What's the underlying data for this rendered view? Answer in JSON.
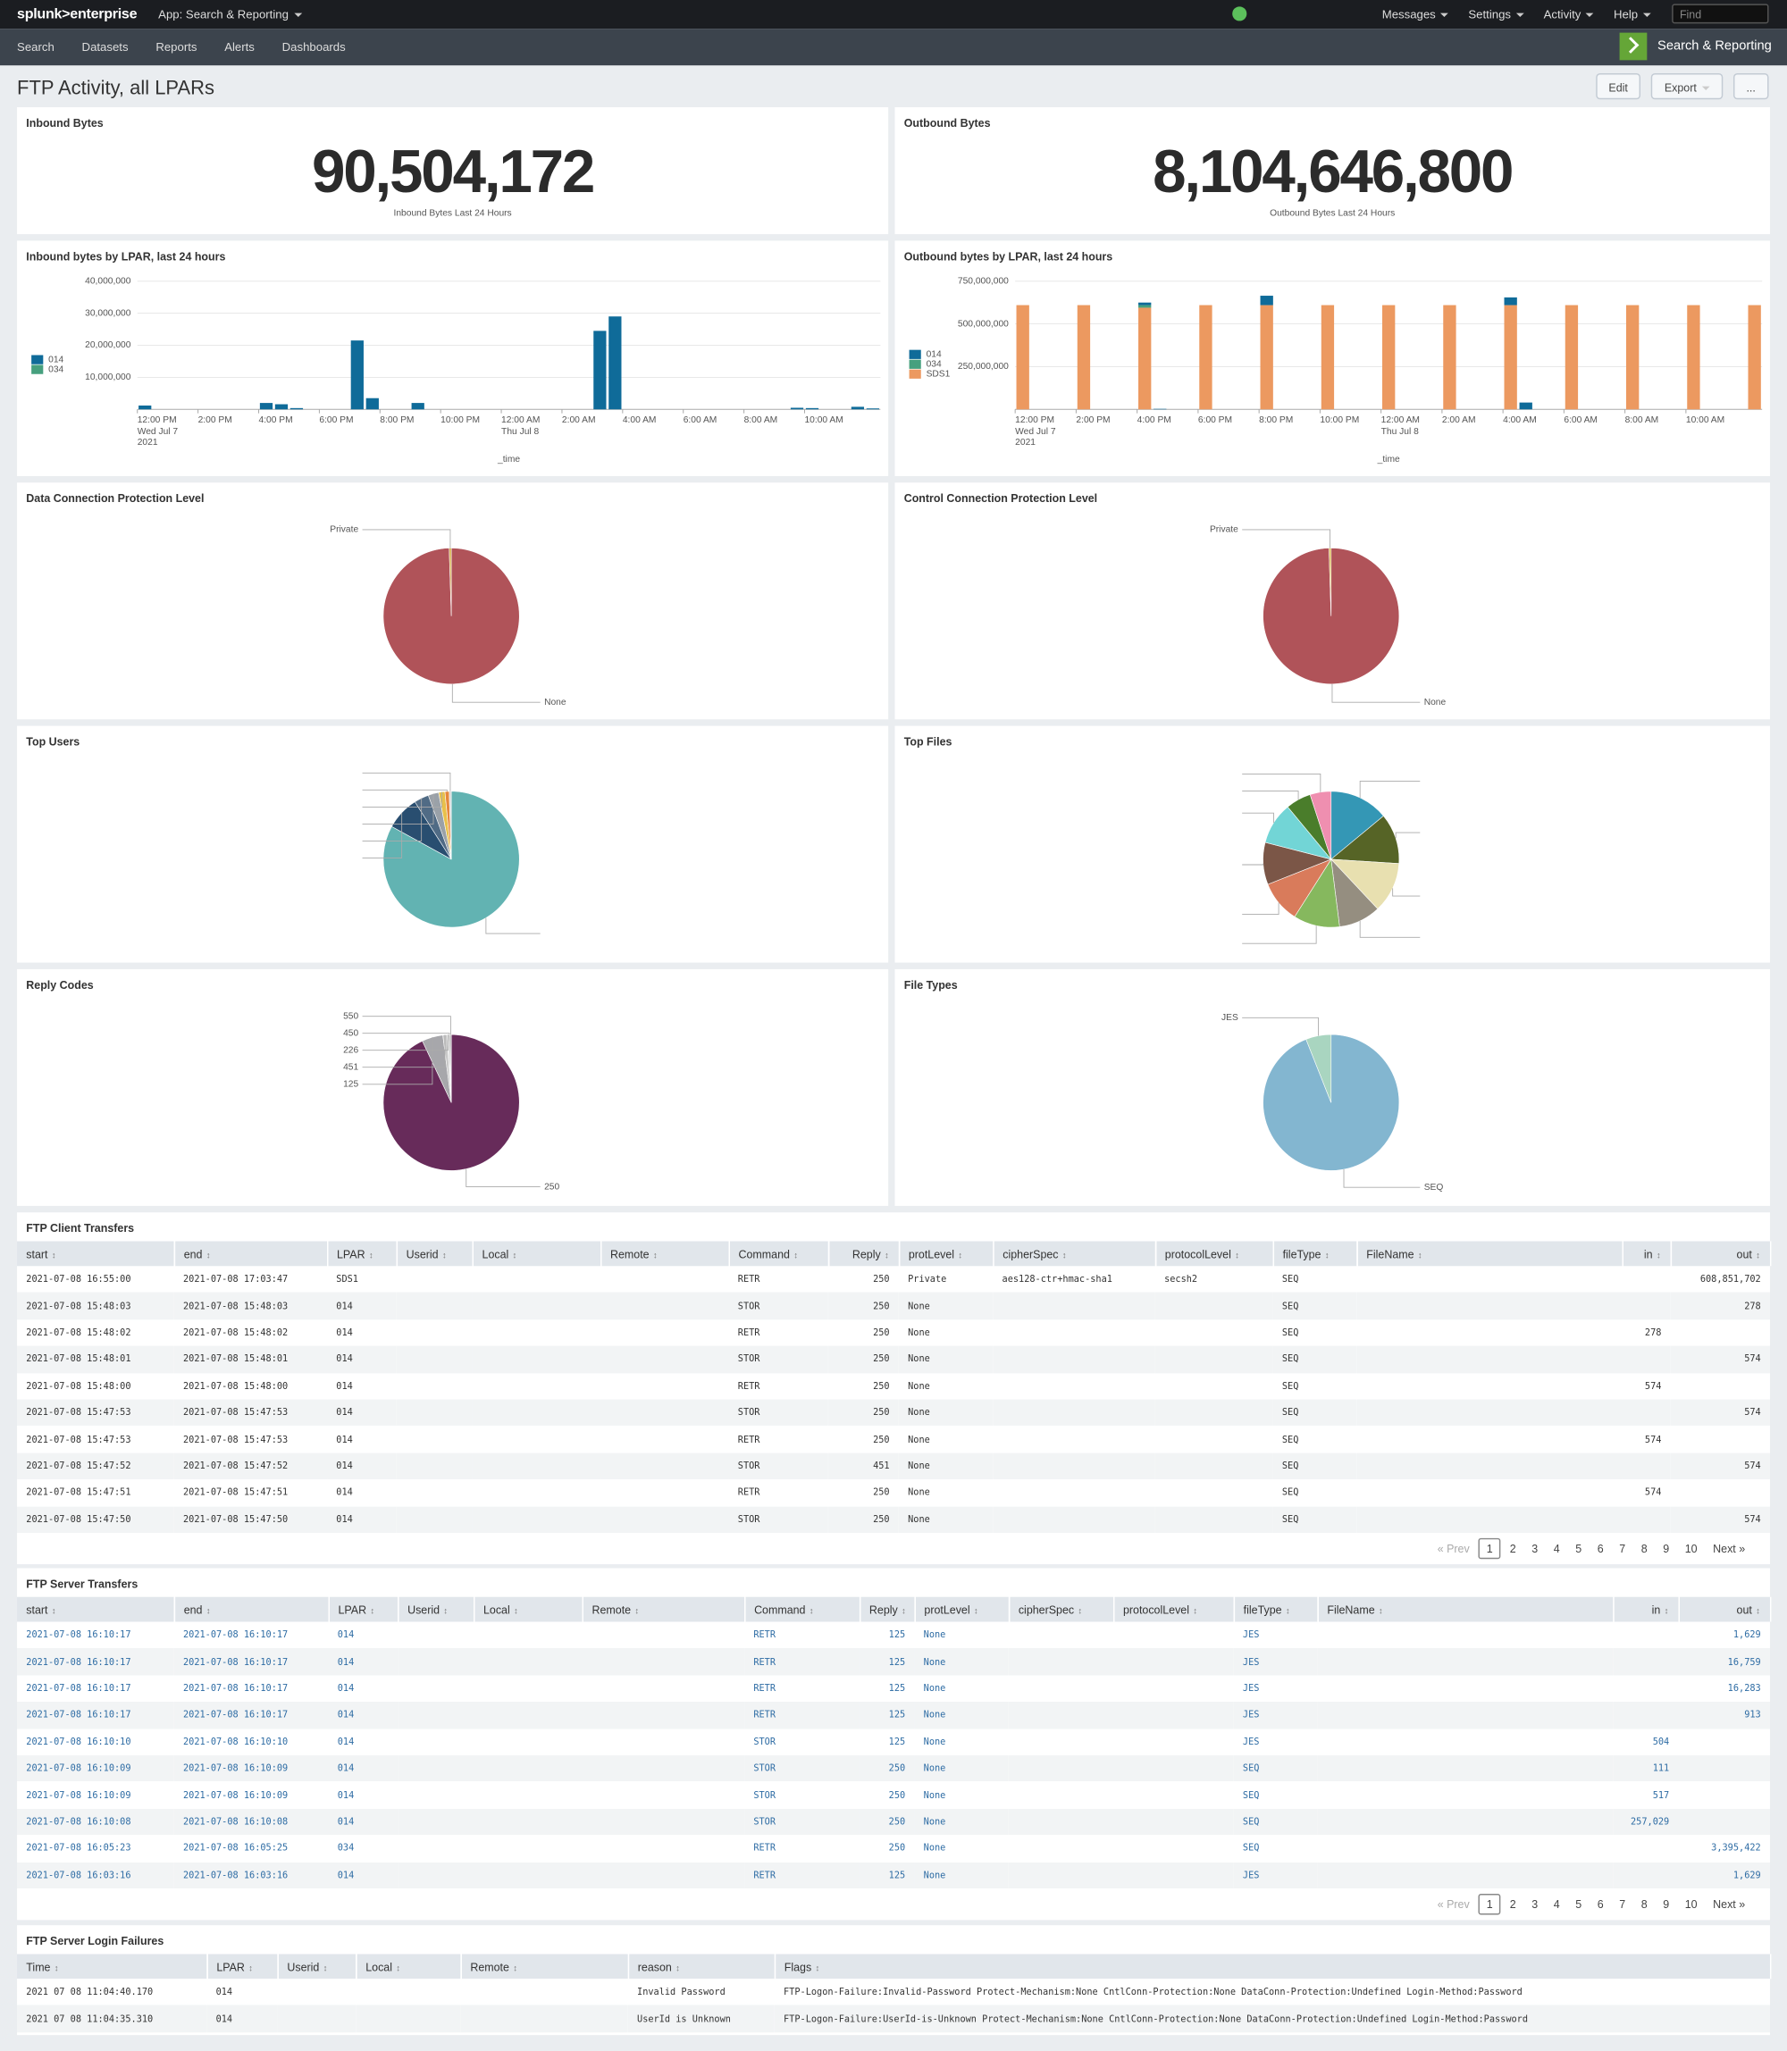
{
  "nav": {
    "brand": "splunk>enterprise",
    "app": "App: Search & Reporting",
    "menus": [
      "Messages",
      "Settings",
      "Activity",
      "Help"
    ],
    "find": "Find"
  },
  "subnav": {
    "items": [
      "Search",
      "Datasets",
      "Reports",
      "Alerts",
      "Dashboards"
    ],
    "app_title": "Search & Reporting"
  },
  "dashboard": {
    "title": "FTP Activity, all LPARs",
    "buttons": [
      "Edit",
      "Export",
      "..."
    ]
  },
  "singles": [
    {
      "title": "Inbound Bytes",
      "value": "90,504,172",
      "caption": "Inbound Bytes Last 24 Hours"
    },
    {
      "title": "Outbound Bytes",
      "value": "8,104,646,800",
      "caption": "Outbound Bytes Last 24 Hours"
    }
  ],
  "chart_data": [
    {
      "type": "bar",
      "stacked": true,
      "title": "Inbound bytes by LPAR, last 24 hours",
      "x_label": "_time",
      "categories": [
        "12:00 PM\nWed Jul 7\n2021",
        null,
        null,
        null,
        "2:00 PM",
        null,
        null,
        null,
        "4:00 PM",
        null,
        null,
        null,
        "6:00 PM",
        null,
        null,
        null,
        "8:00 PM",
        null,
        null,
        null,
        "10:00 PM",
        null,
        null,
        null,
        "12:00 AM\nThu Jul 8",
        null,
        null,
        null,
        "2:00 AM",
        null,
        null,
        null,
        "4:00 AM",
        null,
        null,
        null,
        "6:00 AM",
        null,
        null,
        null,
        "8:00 AM",
        null,
        null,
        null,
        "10:00 AM",
        null,
        null,
        null,
        null
      ],
      "series": [
        {
          "name": "014",
          "color": "#0f6b99",
          "values": [
            1200000,
            0,
            0,
            0,
            0,
            0,
            0,
            0,
            2000000,
            1600000,
            400000,
            0,
            0,
            0,
            21500000,
            3500000,
            0,
            0,
            2000000,
            0,
            0,
            0,
            0,
            0,
            0,
            0,
            0,
            0,
            0,
            0,
            24500000,
            29000000,
            0,
            0,
            0,
            0,
            0,
            0,
            0,
            0,
            0,
            0,
            0,
            500000,
            400000,
            0,
            0,
            800000,
            300000
          ]
        },
        {
          "name": "034",
          "color": "#46a07e",
          "values": [
            0,
            0,
            0,
            0,
            0,
            0,
            0,
            0,
            0,
            0,
            0,
            0,
            0,
            0,
            0,
            0,
            0,
            0,
            0,
            0,
            0,
            0,
            0,
            0,
            0,
            0,
            0,
            0,
            0,
            0,
            0,
            0,
            0,
            0,
            0,
            0,
            0,
            0,
            0,
            0,
            0,
            0,
            0,
            0,
            0,
            0,
            0,
            0,
            0
          ]
        }
      ],
      "ylim": [
        0,
        40000000
      ],
      "yticks": [
        {
          "value": 10000000,
          "label": "10,000,000"
        },
        {
          "value": 20000000,
          "label": "20,000,000"
        },
        {
          "value": 30000000,
          "label": "30,000,000"
        },
        {
          "value": 40000000,
          "label": "40,000,000"
        }
      ],
      "grid": true,
      "legend": "left"
    },
    {
      "type": "bar",
      "stacked": true,
      "title": "Outbound bytes by LPAR, last 24 hours",
      "x_label": "_time",
      "categories": [
        "12:00 PM\nWed Jul 7\n2021",
        null,
        null,
        null,
        "2:00 PM",
        null,
        null,
        null,
        "4:00 PM",
        null,
        null,
        null,
        "6:00 PM",
        null,
        null,
        null,
        "8:00 PM",
        null,
        null,
        null,
        "10:00 PM",
        null,
        null,
        null,
        "12:00 AM\nThu Jul 8",
        null,
        null,
        null,
        "2:00 AM",
        null,
        null,
        null,
        "4:00 AM",
        null,
        null,
        null,
        "6:00 AM",
        null,
        null,
        null,
        "8:00 AM",
        null,
        null,
        null,
        "10:00 AM",
        null,
        null,
        null,
        null
      ],
      "series": [
        {
          "name": "014",
          "color": "#0f6b99",
          "values": [
            0,
            0,
            0,
            0,
            0,
            0,
            0,
            0,
            15000000,
            3000000,
            0,
            0,
            0,
            0,
            0,
            0,
            55000000,
            0,
            0,
            0,
            0,
            0,
            0,
            0,
            0,
            0,
            0,
            0,
            0,
            0,
            0,
            0,
            45000000,
            40000000,
            0,
            0,
            0,
            0,
            0,
            0,
            0,
            0,
            0,
            0,
            0,
            0,
            0,
            0,
            0
          ]
        },
        {
          "name": "034",
          "color": "#46a07e",
          "values": [
            0,
            0,
            0,
            0,
            0,
            0,
            0,
            0,
            15000000,
            0,
            0,
            0,
            0,
            0,
            0,
            0,
            0,
            0,
            0,
            0,
            0,
            0,
            0,
            0,
            0,
            0,
            0,
            0,
            0,
            0,
            0,
            0,
            0,
            0,
            0,
            0,
            0,
            0,
            0,
            0,
            0,
            0,
            0,
            0,
            0,
            0,
            0,
            0,
            0
          ]
        },
        {
          "name": "SDS1",
          "color": "#ec9960",
          "values": [
            610000000,
            0,
            0,
            0,
            610000000,
            0,
            0,
            0,
            595000000,
            0,
            0,
            0,
            610000000,
            0,
            0,
            0,
            610000000,
            0,
            0,
            0,
            610000000,
            0,
            0,
            0,
            610000000,
            0,
            0,
            0,
            610000000,
            0,
            0,
            0,
            610000000,
            0,
            0,
            0,
            610000000,
            0,
            0,
            0,
            610000000,
            0,
            0,
            0,
            610000000,
            0,
            0,
            0,
            610000000
          ]
        }
      ],
      "ylim": [
        0,
        750000000
      ],
      "yticks": [
        {
          "value": 250000000,
          "label": "250,000,000"
        },
        {
          "value": 500000000,
          "label": "500,000,000"
        },
        {
          "value": 750000000,
          "label": "750,000,000"
        }
      ],
      "grid": true,
      "legend": "left"
    },
    {
      "type": "pie",
      "title": "Data Connection Protection Level",
      "categories": [
        "None",
        "Private"
      ],
      "values": [
        99.5,
        0.5
      ],
      "colors": [
        "#b05359",
        "#d6b34a"
      ]
    },
    {
      "type": "pie",
      "title": "Control Connection Protection Level",
      "categories": [
        "None",
        "Private"
      ],
      "values": [
        99.5,
        0.5
      ],
      "colors": [
        "#b05359",
        "#d6b34a"
      ]
    },
    {
      "type": "pie",
      "title": "Top Users",
      "categories": [
        null,
        null,
        null,
        null,
        null,
        null,
        null
      ],
      "values": [
        83,
        8,
        3.5,
        2.5,
        1.5,
        1,
        0.5
      ],
      "colors": [
        "#62b3b2",
        "#294e70",
        "#506b85",
        "#9aa1a8",
        "#e8c04a",
        "#e6873c",
        "#d8d8d8"
      ]
    },
    {
      "type": "pie",
      "title": "Top Files",
      "categories": [
        null,
        null,
        null,
        null,
        null,
        null,
        null,
        null,
        null,
        null
      ],
      "values": [
        14,
        12,
        12,
        10,
        11,
        10,
        10,
        10,
        6,
        5
      ],
      "colors": [
        "#3497b5",
        "#566426",
        "#e8e0b0",
        "#958e80",
        "#86b85e",
        "#d97b5b",
        "#7b5647",
        "#72d5d6",
        "#4a7d2b",
        "#ef8fb0"
      ]
    },
    {
      "type": "pie",
      "title": "Reply Codes",
      "categories": [
        "250",
        "125",
        "451",
        "226",
        "450",
        "550"
      ],
      "values": [
        93,
        5,
        1,
        0.4,
        0.3,
        0.3
      ],
      "colors": [
        "#672b5a",
        "#a7a7ab",
        "#c9c9c9",
        "#dddddd",
        "#888888",
        "#bbbbbb"
      ]
    },
    {
      "type": "pie",
      "title": "File Types",
      "categories": [
        "SEQ",
        "JES"
      ],
      "values": [
        94,
        6
      ],
      "colors": [
        "#83b6d0",
        "#a9d5c0"
      ]
    }
  ],
  "tables": [
    {
      "title": "FTP Client Transfers",
      "columns": [
        "start",
        "end",
        "LPAR",
        "Userid",
        "Local",
        "Remote",
        "Command",
        "Reply",
        "protLevel",
        "cipherSpec",
        "protocolLevel",
        "fileType",
        "FileName",
        "in",
        "out"
      ],
      "rows": [
        [
          "2021-07-08 16:55:00",
          "2021-07-08 17:03:47",
          "SDS1",
          null,
          null,
          null,
          "RETR",
          "250",
          "Private",
          "aes128-ctr+hmac-sha1",
          "secsh2",
          "SEQ",
          null,
          null,
          "608,851,702"
        ],
        [
          "2021-07-08 15:48:03",
          "2021-07-08 15:48:03",
          "014",
          null,
          null,
          null,
          "STOR",
          "250",
          "None",
          null,
          null,
          "SEQ",
          null,
          null,
          "278"
        ],
        [
          "2021-07-08 15:48:02",
          "2021-07-08 15:48:02",
          "014",
          null,
          null,
          null,
          "RETR",
          "250",
          "None",
          null,
          null,
          "SEQ",
          null,
          "278",
          null
        ],
        [
          "2021-07-08 15:48:01",
          "2021-07-08 15:48:01",
          "014",
          null,
          null,
          null,
          "STOR",
          "250",
          "None",
          null,
          null,
          "SEQ",
          null,
          null,
          "574"
        ],
        [
          "2021-07-08 15:48:00",
          "2021-07-08 15:48:00",
          "014",
          null,
          null,
          null,
          "RETR",
          "250",
          "None",
          null,
          null,
          "SEQ",
          null,
          "574",
          null
        ],
        [
          "2021-07-08 15:47:53",
          "2021-07-08 15:47:53",
          "014",
          null,
          null,
          null,
          "STOR",
          "250",
          "None",
          null,
          null,
          "SEQ",
          null,
          null,
          "574"
        ],
        [
          "2021-07-08 15:47:53",
          "2021-07-08 15:47:53",
          "014",
          null,
          null,
          null,
          "RETR",
          "250",
          "None",
          null,
          null,
          "SEQ",
          null,
          "574",
          null
        ],
        [
          "2021-07-08 15:47:52",
          "2021-07-08 15:47:52",
          "014",
          null,
          null,
          null,
          "STOR",
          "451",
          "None",
          null,
          null,
          "SEQ",
          null,
          null,
          "574"
        ],
        [
          "2021-07-08 15:47:51",
          "2021-07-08 15:47:51",
          "014",
          null,
          null,
          null,
          "RETR",
          "250",
          "None",
          null,
          null,
          "SEQ",
          null,
          "574",
          null
        ],
        [
          "2021-07-08 15:47:50",
          "2021-07-08 15:47:50",
          "014",
          null,
          null,
          null,
          "STOR",
          "250",
          "None",
          null,
          null,
          "SEQ",
          null,
          null,
          "574"
        ]
      ],
      "pagination": {
        "prev": "« Prev",
        "pages": [
          1,
          2,
          3,
          4,
          5,
          6,
          7,
          8,
          9,
          10
        ],
        "current": 1,
        "next": "Next »"
      }
    },
    {
      "title": "FTP Server Transfers",
      "columns": [
        "start",
        "end",
        "LPAR",
        "Userid",
        "Local",
        "Remote",
        "Command",
        "Reply",
        "protLevel",
        "cipherSpec",
        "protocolLevel",
        "fileType",
        "FileName",
        "in",
        "out"
      ],
      "rows": [
        [
          "2021-07-08 16:10:17",
          "2021-07-08 16:10:17",
          "014",
          null,
          null,
          null,
          "RETR",
          "125",
          "None",
          null,
          null,
          "JES",
          null,
          null,
          "1,629"
        ],
        [
          "2021-07-08 16:10:17",
          "2021-07-08 16:10:17",
          "014",
          null,
          null,
          null,
          "RETR",
          "125",
          "None",
          null,
          null,
          "JES",
          null,
          null,
          "16,759"
        ],
        [
          "2021-07-08 16:10:17",
          "2021-07-08 16:10:17",
          "014",
          null,
          null,
          null,
          "RETR",
          "125",
          "None",
          null,
          null,
          "JES",
          null,
          null,
          "16,283"
        ],
        [
          "2021-07-08 16:10:17",
          "2021-07-08 16:10:17",
          "014",
          null,
          null,
          null,
          "RETR",
          "125",
          "None",
          null,
          null,
          "JES",
          null,
          null,
          "913"
        ],
        [
          "2021-07-08 16:10:10",
          "2021-07-08 16:10:10",
          "014",
          null,
          null,
          null,
          "STOR",
          "125",
          "None",
          null,
          null,
          "JES",
          null,
          "504",
          null
        ],
        [
          "2021-07-08 16:10:09",
          "2021-07-08 16:10:09",
          "014",
          null,
          null,
          null,
          "STOR",
          "250",
          "None",
          null,
          null,
          "SEQ",
          null,
          "111",
          null
        ],
        [
          "2021-07-08 16:10:09",
          "2021-07-08 16:10:09",
          "014",
          null,
          null,
          null,
          "STOR",
          "250",
          "None",
          null,
          null,
          "SEQ",
          null,
          "517",
          null
        ],
        [
          "2021-07-08 16:10:08",
          "2021-07-08 16:10:08",
          "014",
          null,
          null,
          null,
          "STOR",
          "250",
          "None",
          null,
          null,
          "SEQ",
          null,
          "257,029",
          null
        ],
        [
          "2021-07-08 16:05:23",
          "2021-07-08 16:05:25",
          "034",
          null,
          null,
          null,
          "RETR",
          "250",
          "None",
          null,
          null,
          "SEQ",
          null,
          null,
          "3,395,422"
        ],
        [
          "2021-07-08 16:03:16",
          "2021-07-08 16:03:16",
          "014",
          null,
          null,
          null,
          "RETR",
          "125",
          "None",
          null,
          null,
          "JES",
          null,
          null,
          "1,629"
        ]
      ],
      "pagination": {
        "prev": "« Prev",
        "pages": [
          1,
          2,
          3,
          4,
          5,
          6,
          7,
          8,
          9,
          10
        ],
        "current": 1,
        "next": "Next »"
      }
    },
    {
      "title": "FTP Server Login Failures",
      "columns": [
        "Time",
        "LPAR",
        "Userid",
        "Local",
        "Remote",
        "reason",
        "Flags"
      ],
      "rows": [
        [
          "2021 07 08 11:04:40.170",
          "014",
          null,
          null,
          null,
          "Invalid Password",
          "FTP-Logon-Failure:Invalid-Password Protect-Mechanism:None CntlConn-Protection:None DataConn-Protection:Undefined Login-Method:Password"
        ],
        [
          "2021 07 08 11:04:35.310",
          "014",
          null,
          null,
          null,
          "UserId is Unknown",
          "FTP-Logon-Failure:UserId-is-Unknown Protect-Mechanism:None CntlConn-Protection:None DataConn-Protection:Undefined Login-Method:Password"
        ]
      ]
    }
  ]
}
